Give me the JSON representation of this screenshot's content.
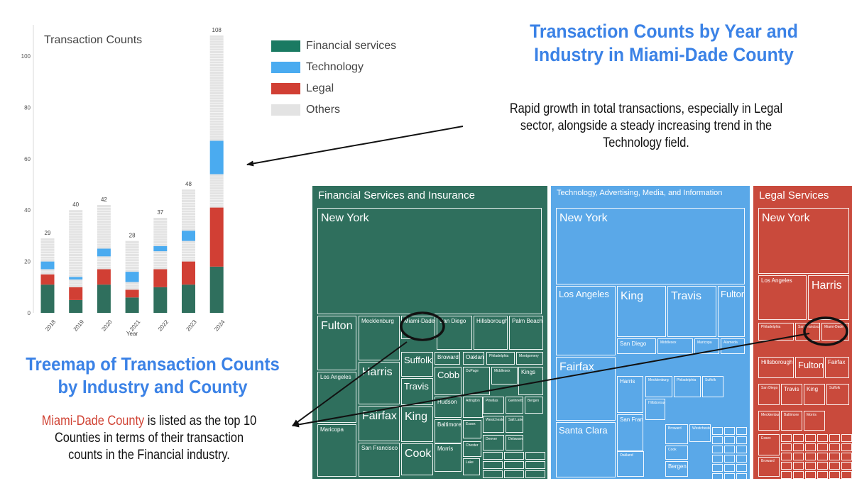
{
  "title_main": "Transaction Counts by Year and Industry in Miami-Dade County",
  "title_main_lines": [
    "Transaction Counts by Year and",
    "Industry in Miami-Dade County"
  ],
  "title_treemap_lines": [
    "Treemap of Transaction Counts",
    "by Industry and County"
  ],
  "notes": {
    "growth_lines": [
      "Rapid growth in total transactions, especially in Legal",
      "sector, alongside a steady increasing trend in the",
      "Technology field."
    ],
    "miami_highlight": "Miami-Dade County",
    "miami_line1_rest": " is listed as the top 10",
    "miami_lines": [
      "Counties in terms of their transaction",
      "counts in the Financial industry."
    ]
  },
  "colors": {
    "financial": "#2f6f5d",
    "technology": "#4aabf0",
    "legal": "#d13f34",
    "others": "#e3e3e3",
    "tech_panel": "#5aa8e8",
    "legal_panel": "#c94a3c",
    "headline": "#3b82e6"
  },
  "chart_data": [
    {
      "type": "bar",
      "title": "Transaction Counts",
      "xlabel": "Year",
      "ylabel": "",
      "ylim": [
        0,
        108
      ],
      "yticks": [
        0,
        20,
        40,
        60,
        80,
        100
      ],
      "categories": [
        "2018",
        "2019",
        "2020",
        "2021",
        "2022",
        "2023",
        "2024"
      ],
      "stacked": true,
      "grid": false,
      "legend_position": "top-right",
      "series": [
        {
          "name": "Financial services",
          "color": "#2f6f5d",
          "values": [
            11,
            5,
            11,
            6,
            10,
            11,
            18
          ]
        },
        {
          "name": "Legal",
          "color": "#d13f34",
          "values": [
            4,
            5,
            6,
            3,
            7,
            9,
            23
          ]
        },
        {
          "name": "Others",
          "color": "#e3e3e3",
          "values": [
            2,
            3,
            5,
            3,
            7,
            8,
            13
          ]
        },
        {
          "name": "Technology",
          "color": "#4aabf0",
          "values": [
            3,
            1,
            3,
            4,
            2,
            4,
            13
          ]
        },
        {
          "name": "Others",
          "color": "#e3e3e3",
          "values": [
            9,
            26,
            17,
            12,
            11,
            16,
            41
          ]
        }
      ],
      "legend": [
        "Financial services",
        "Technology",
        "Legal",
        "Others"
      ],
      "totals": [
        29,
        40,
        42,
        28,
        37,
        48,
        108
      ]
    },
    {
      "type": "treemap",
      "panels": [
        {
          "name": "Financial Services and Insurance",
          "color": "#2f6f5d",
          "items": [
            "New York",
            "Fulton",
            "Mecklenburg",
            "Miami-Dade",
            "San Diego",
            "Hillsborough",
            "Palm Beach",
            "Los Angeles",
            "Harris",
            "Suffolk",
            "Broward",
            "Oakland",
            "Philadelphia",
            "Montgomery",
            "Travis",
            "Cobb",
            "DuPage",
            "Middlesex",
            "Kings",
            "Fairfax",
            "Hudson",
            "Arlington",
            "Maricopa",
            "King",
            "Baltimore",
            "San Francisco",
            "Cook",
            "Morris",
            "Essex",
            "Chester",
            "Lake",
            "Pinellas",
            "Gwinnett",
            "Bergen",
            "Westchester",
            "Salt Lake",
            "Denver",
            "Delaware"
          ]
        },
        {
          "name": "Technology, Advertising, Media, and Information",
          "color": "#5aa8e8",
          "items": [
            "New York",
            "Los Angeles",
            "King",
            "Travis",
            "Fulton",
            "San Diego",
            "Middlesex",
            "Maricopa",
            "Alameda",
            "Fairfax",
            "Harris",
            "Mecklenburg",
            "Philadelphia",
            "Suffolk",
            "San Francisco",
            "Santa Clara",
            "Oakland",
            "Hillsborough",
            "Broward",
            "Cook",
            "Bergen",
            "Westchester"
          ]
        },
        {
          "name": "Legal Services",
          "color": "#c94a3c",
          "items": [
            "New York",
            "Los Angeles",
            "Harris",
            "Philadelphia",
            "San Francisco",
            "Miami-Dade",
            "Hillsborough",
            "Fulton",
            "Fairfax",
            "San Diego",
            "Travis",
            "King",
            "Suffolk",
            "Mecklenburg",
            "Baltimore",
            "Morris",
            "Essex",
            "Broward"
          ]
        }
      ]
    }
  ]
}
